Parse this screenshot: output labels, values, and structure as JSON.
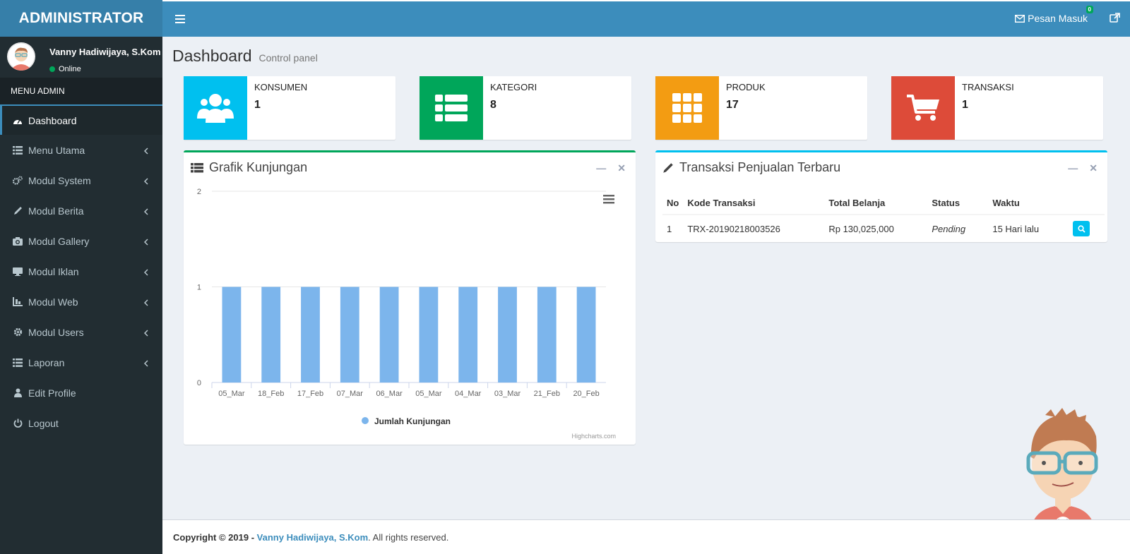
{
  "header": {
    "logo": "ADMINISTRATOR",
    "messages_label": "Pesan Masuk",
    "messages_badge": "0"
  },
  "sidebar": {
    "user_name": "Vanny Hadiwijaya, S.Kom",
    "user_status": "Online",
    "menu_header": "MENU ADMIN",
    "items": [
      {
        "label": "Dashboard",
        "icon": "dashboard-icon"
      },
      {
        "label": "Menu Utama",
        "icon": "list-icon"
      },
      {
        "label": "Modul System",
        "icon": "cogs-icon"
      },
      {
        "label": "Modul Berita",
        "icon": "pencil-icon"
      },
      {
        "label": "Modul Gallery",
        "icon": "camera-icon"
      },
      {
        "label": "Modul Iklan",
        "icon": "desktop-icon"
      },
      {
        "label": "Modul Web",
        "icon": "building-icon"
      },
      {
        "label": "Modul Users",
        "icon": "cog-icon"
      },
      {
        "label": "Laporan",
        "icon": "list-icon"
      },
      {
        "label": "Edit Profile",
        "icon": "user-icon"
      },
      {
        "label": "Logout",
        "icon": "power-icon"
      }
    ]
  },
  "page": {
    "title": "Dashboard",
    "subtitle": "Control panel"
  },
  "info_boxes": [
    {
      "label": "KONSUMEN",
      "value": "1",
      "color": "#00c0ef",
      "icon": "users-icon"
    },
    {
      "label": "KATEGORI",
      "value": "8",
      "color": "#00a65a",
      "icon": "th-list-icon"
    },
    {
      "label": "PRODUK",
      "value": "17",
      "color": "#f39c12",
      "icon": "th-icon"
    },
    {
      "label": "TRANSAKSI",
      "value": "1",
      "color": "#dd4b39",
      "icon": "cart-icon"
    }
  ],
  "visits_box": {
    "title": "Grafik Kunjungan",
    "credit": "Highcharts.com"
  },
  "chart_data": {
    "type": "bar",
    "categories": [
      "05_Mar",
      "18_Feb",
      "17_Feb",
      "07_Mar",
      "06_Mar",
      "05_Mar",
      "04_Mar",
      "03_Mar",
      "21_Feb",
      "20_Feb"
    ],
    "series": [
      {
        "name": "Jumlah Kunjungan",
        "values": [
          1,
          1,
          1,
          1,
          1,
          1,
          1,
          1,
          1,
          1
        ],
        "color": "#7cb5ec"
      }
    ],
    "ylim": [
      0,
      2
    ],
    "yticks": [
      "0",
      "1",
      "2"
    ],
    "grid": true,
    "legend": "bottom"
  },
  "transactions_box": {
    "title": "Transaksi Penjualan Terbaru",
    "columns": [
      "No",
      "Kode Transaksi",
      "Total Belanja",
      "Status",
      "Waktu"
    ],
    "rows": [
      {
        "no": "1",
        "code": "TRX-20190218003526",
        "total": "Rp 130,025,000",
        "status": "Pending",
        "time": "15 Hari lalu"
      }
    ]
  },
  "footer": {
    "prefix": "Copyright © 2019 -",
    "author": "Vanny Hadiwijaya, S.Kom",
    "suffix": ". All rights reserved."
  }
}
